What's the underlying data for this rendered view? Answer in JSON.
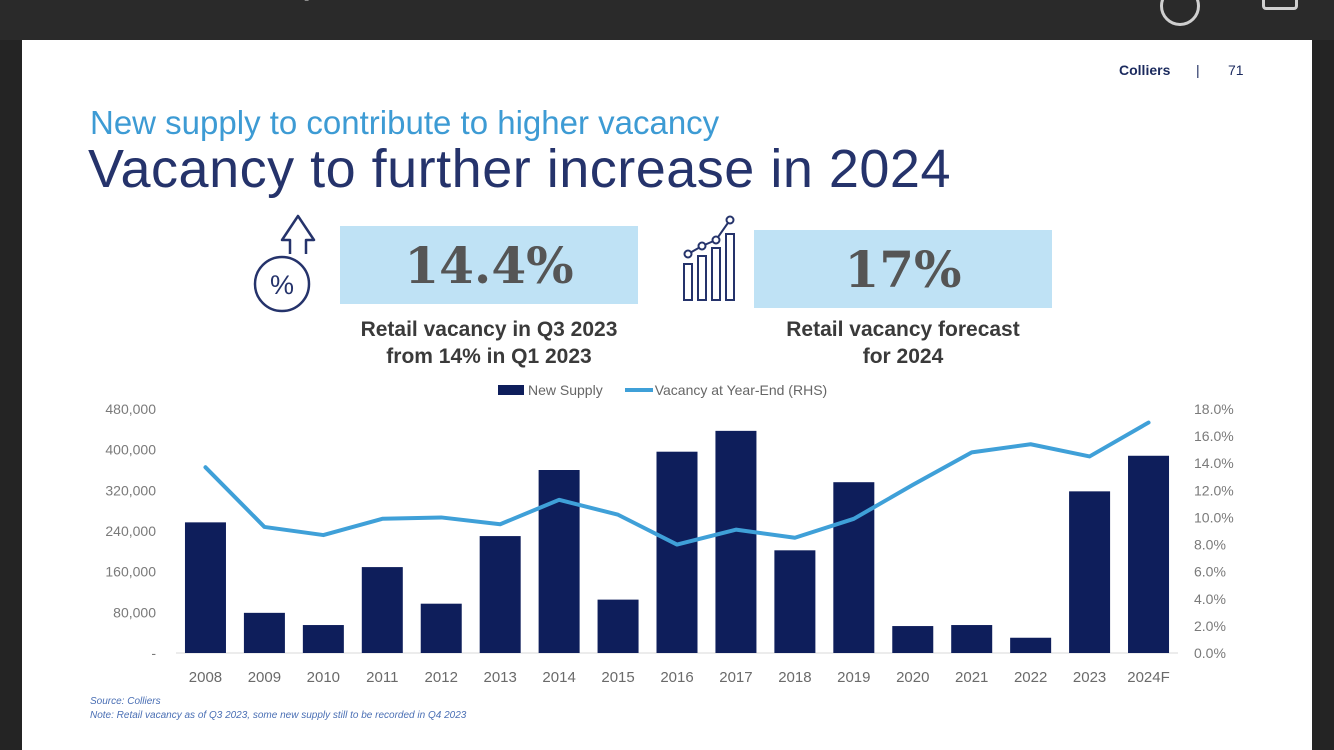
{
  "header": {
    "brand": "Colliers",
    "separator": "|",
    "page_number": "71"
  },
  "subtitle": "New supply to contribute to higher vacancy",
  "title": "Vacancy to further increase in 2024",
  "kpis": [
    {
      "value": "14.4%",
      "caption_line1": "Retail vacancy in Q3 2023",
      "caption_line2": "from 14% in Q1 2023",
      "icon": "percent-up-arrow-icon"
    },
    {
      "value": "17%",
      "caption_line1": "Retail vacancy forecast",
      "caption_line2": "for 2024",
      "icon": "growth-chart-icon"
    }
  ],
  "colors": {
    "bar": "#0e1e5b",
    "line": "#3fa0d8",
    "title": "#25336b",
    "subtitle": "#3d9bd4",
    "kpi_box": "#bfe2f5"
  },
  "chart_data": {
    "type": "bar",
    "categories": [
      "2008",
      "2009",
      "2010",
      "2011",
      "2012",
      "2013",
      "2014",
      "2015",
      "2016",
      "2017",
      "2018",
      "2019",
      "2020",
      "2021",
      "2022",
      "2023",
      "2024F"
    ],
    "series": [
      {
        "name": "New Supply",
        "type": "bar",
        "axis": "left",
        "values": [
          257000,
          79000,
          55000,
          169000,
          97000,
          230000,
          360000,
          105000,
          396000,
          437000,
          202000,
          336000,
          53000,
          55000,
          30000,
          318000,
          388000
        ]
      },
      {
        "name": "Vacancy at Year-End (RHS)",
        "type": "line",
        "axis": "right",
        "values": [
          13.7,
          9.3,
          8.7,
          9.9,
          10.0,
          9.5,
          11.3,
          10.2,
          8.0,
          9.1,
          8.5,
          9.9,
          12.4,
          14.8,
          15.4,
          14.5,
          17.0
        ]
      }
    ],
    "y_left": {
      "min": 0,
      "max": 480000,
      "ticks": [
        "-",
        "80,000",
        "160,000",
        "240,000",
        "320,000",
        "400,000",
        "480,000"
      ]
    },
    "y_right": {
      "min": 0,
      "max": 18,
      "ticks": [
        "0.0%",
        "2.0%",
        "4.0%",
        "6.0%",
        "8.0%",
        "10.0%",
        "12.0%",
        "14.0%",
        "16.0%",
        "18.0%"
      ]
    },
    "legend_position": "top-center",
    "grid": false
  },
  "footnotes": {
    "source": "Source: Colliers",
    "note": "Note: Retail vacancy as of Q3 2023, some new supply still to be recorded in Q4 2023"
  }
}
